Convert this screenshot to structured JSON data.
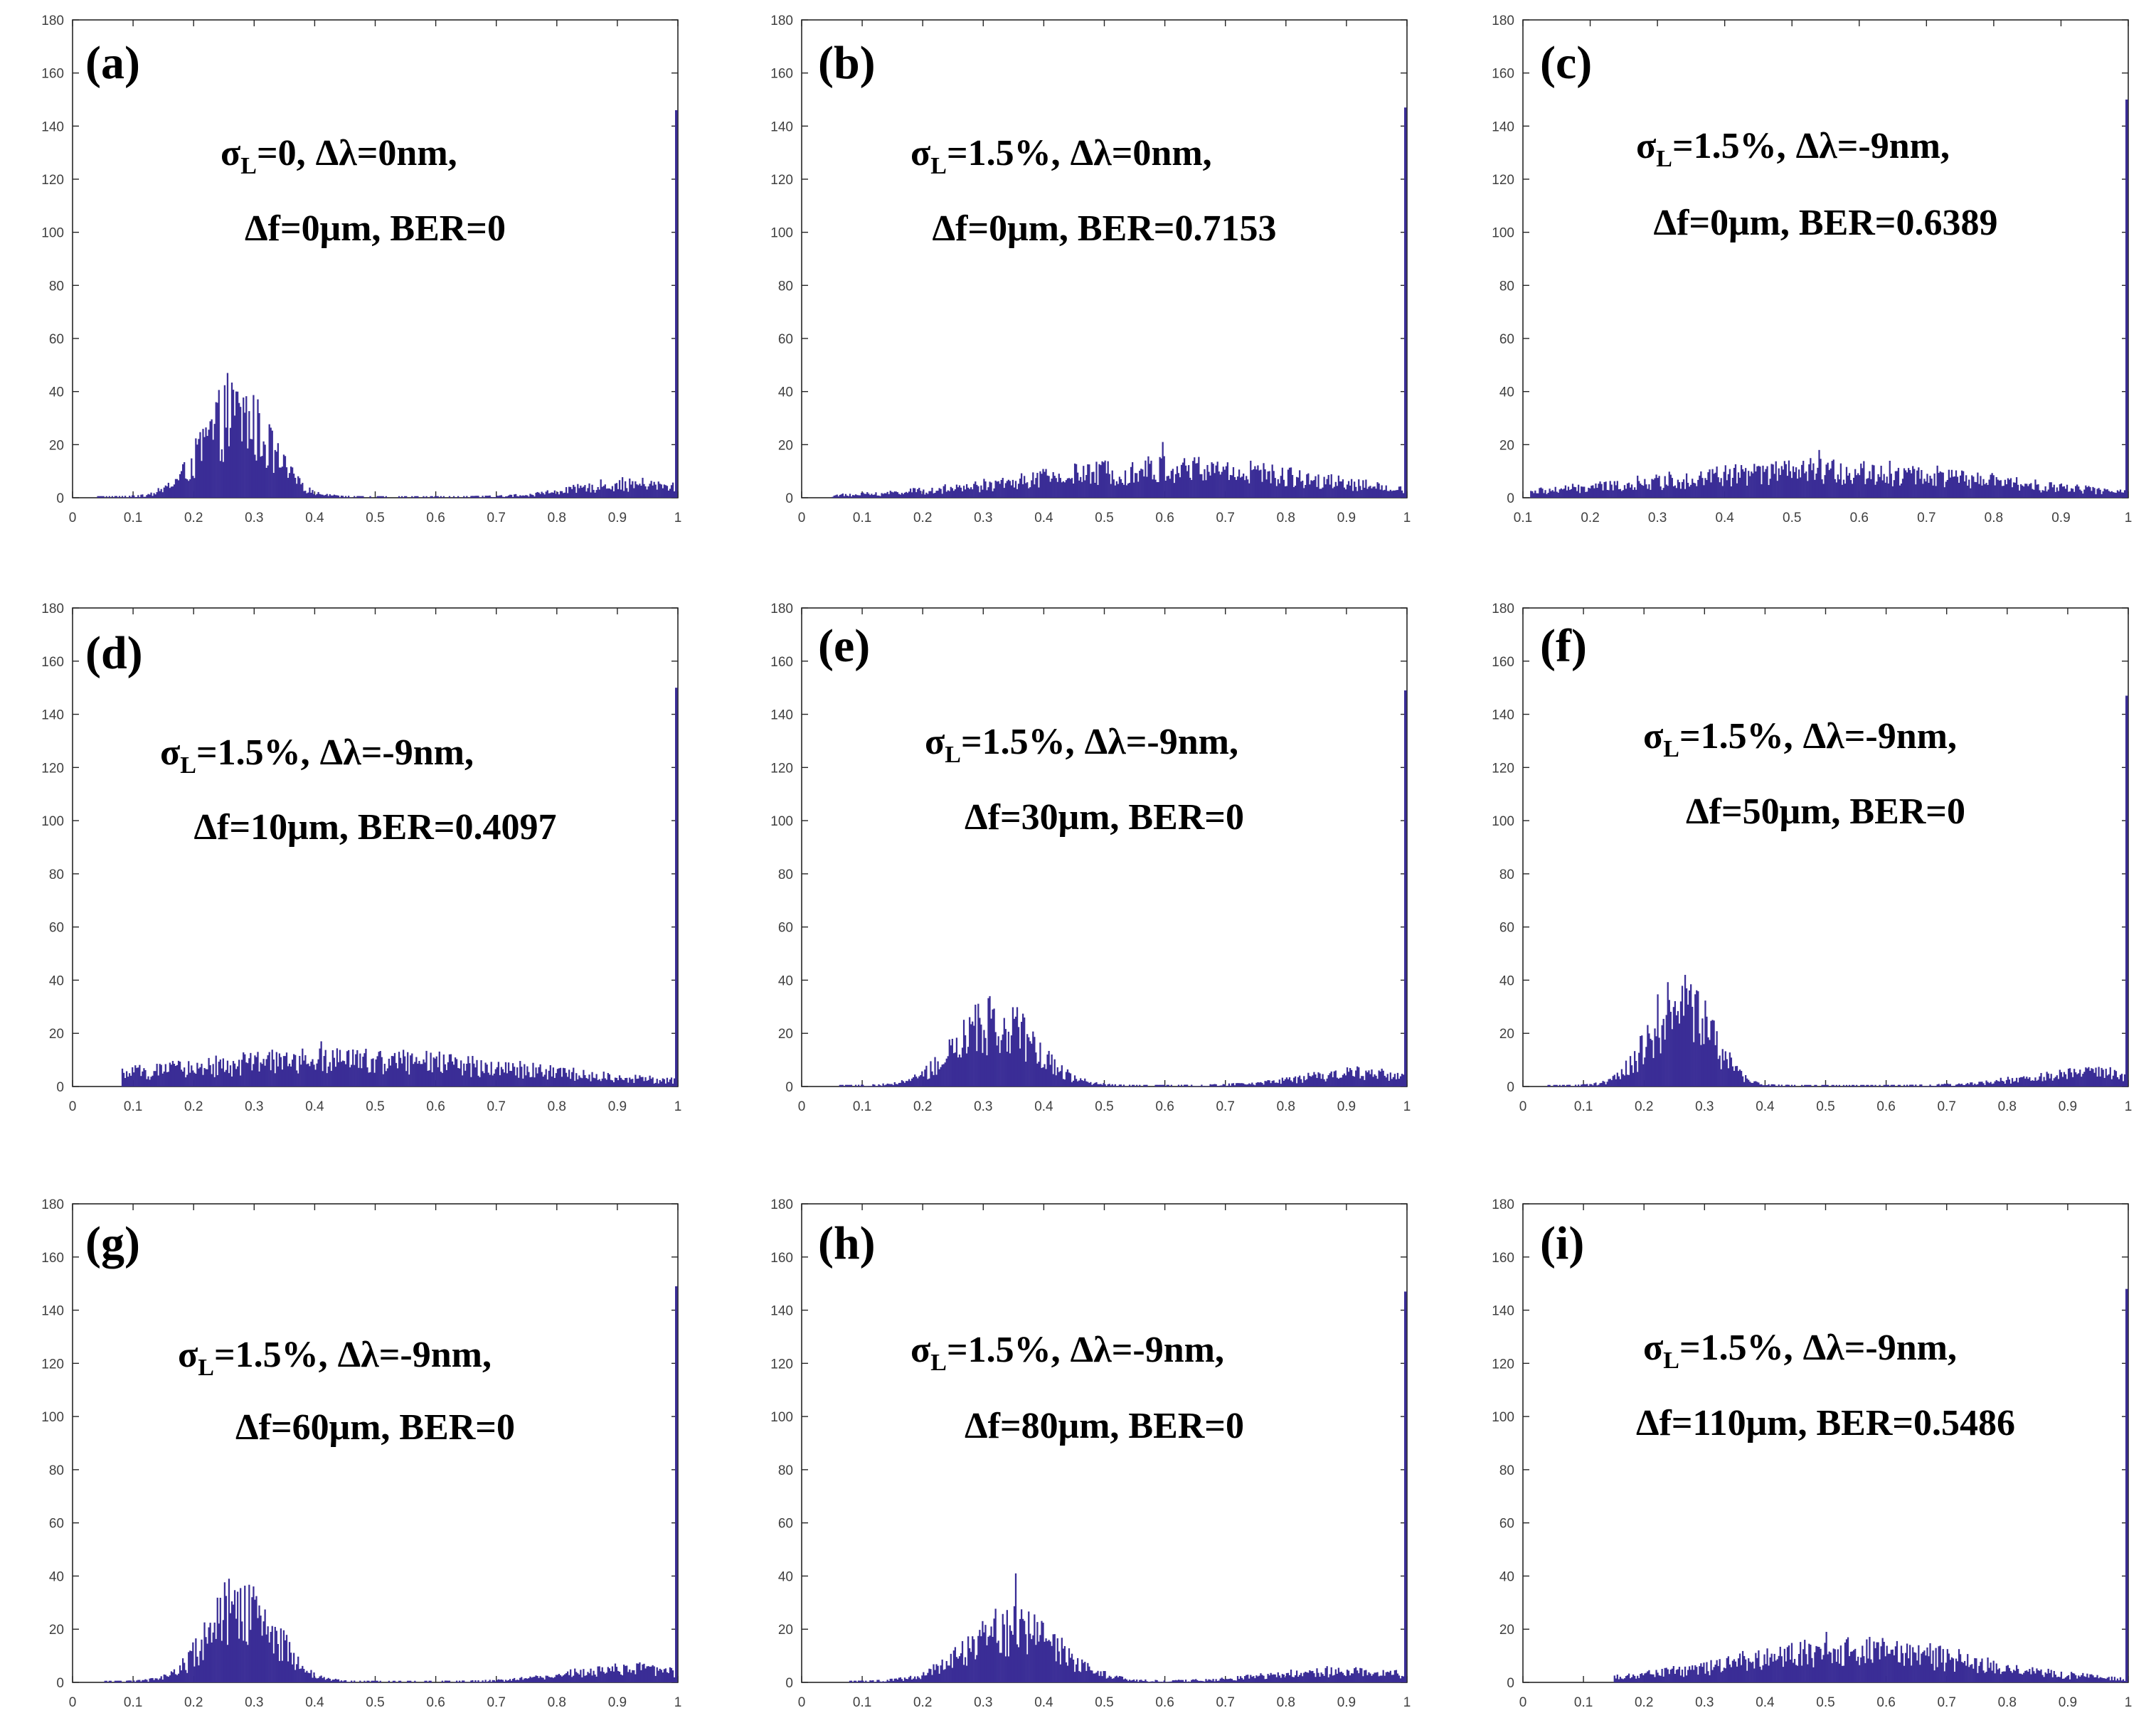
{
  "figure": {
    "colors": {
      "bar": "#3a2d96",
      "axis": "#262626",
      "text": "#000000",
      "background": "#ffffff"
    }
  },
  "chart_data": [
    {
      "type": "bar",
      "panel": "(a)",
      "sigma": "=0,",
      "line1_rest": "Δλ=0nm,",
      "line2": "Δf=0μm, BER=0",
      "xlim": [
        0,
        1
      ],
      "ylim": [
        0,
        180
      ],
      "xticks": [
        "0",
        "0.1",
        "0.2",
        "0.3",
        "0.4",
        "0.5",
        "0.6",
        "0.7",
        "0.8",
        "0.9",
        "1"
      ],
      "yticks": [
        "0",
        "20",
        "40",
        "60",
        "80",
        "100",
        "120",
        "140",
        "160",
        "180"
      ],
      "lobes": [
        {
          "center": 0.27,
          "width": 0.055,
          "height": 32
        },
        {
          "center": 0.92,
          "width": 0.09,
          "height": 5
        }
      ],
      "x_from": 0.04,
      "x_to": 0.995,
      "end_spike": 146,
      "peak_value": 47
    },
    {
      "type": "bar",
      "panel": "(b)",
      "sigma": "=1.5%,",
      "line1_rest": "Δλ=0nm,",
      "line2": "Δf=0μm, BER=0.7153",
      "xlim": [
        0,
        1
      ],
      "ylim": [
        0,
        180
      ],
      "xticks": [
        "0",
        "0.1",
        "0.2",
        "0.3",
        "0.4",
        "0.5",
        "0.6",
        "0.7",
        "0.8",
        "0.9",
        "1"
      ],
      "yticks": [
        "0",
        "20",
        "40",
        "60",
        "80",
        "100",
        "120",
        "140",
        "160",
        "180"
      ],
      "lobes": [
        {
          "center": 0.62,
          "width": 0.24,
          "height": 11
        }
      ],
      "x_from": 0.05,
      "x_to": 0.995,
      "end_spike": 147,
      "peak_value": 21
    },
    {
      "type": "bar",
      "panel": "(c)",
      "sigma": "=1.5%,",
      "line1_rest": "Δλ=-9nm,",
      "line2": "Δf=0μm, BER=0.6389",
      "xlim": [
        0.1,
        1
      ],
      "ylim": [
        0,
        180
      ],
      "xticks": [
        "0.1",
        "0.2",
        "0.3",
        "0.4",
        "0.5",
        "0.6",
        "0.7",
        "0.8",
        "0.9",
        "1"
      ],
      "yticks": [
        "0",
        "20",
        "40",
        "60",
        "80",
        "100",
        "120",
        "140",
        "160",
        "180"
      ],
      "lobes": [
        {
          "center": 0.55,
          "width": 0.25,
          "height": 10
        }
      ],
      "x_from": 0.11,
      "x_to": 0.995,
      "end_spike": 150,
      "peak_value": 18
    },
    {
      "type": "bar",
      "panel": "(d)",
      "sigma": "=1.5%,",
      "line1_rest": "Δλ=-9nm,",
      "line2": "Δf=10μm, BER=0.4097",
      "xlim": [
        0,
        1
      ],
      "ylim": [
        0,
        180
      ],
      "xticks": [
        "0",
        "0.1",
        "0.2",
        "0.3",
        "0.4",
        "0.5",
        "0.6",
        "0.7",
        "0.8",
        "0.9",
        "1"
      ],
      "yticks": [
        "0",
        "20",
        "40",
        "60",
        "80",
        "100",
        "120",
        "140",
        "160",
        "180"
      ],
      "lobes": [
        {
          "center": 0.45,
          "width": 0.3,
          "height": 10
        }
      ],
      "x_from": 0.08,
      "x_to": 0.995,
      "end_spike": 150,
      "peak_value": 17
    },
    {
      "type": "bar",
      "panel": "(e)",
      "sigma": "=1.5%,",
      "line1_rest": "Δλ=-9nm,",
      "line2": "Δf=30μm, BER=0",
      "xlim": [
        0,
        1
      ],
      "ylim": [
        0,
        180
      ],
      "xticks": [
        "0",
        "0.1",
        "0.2",
        "0.3",
        "0.4",
        "0.5",
        "0.6",
        "0.7",
        "0.8",
        "0.9",
        "1"
      ],
      "yticks": [
        "0",
        "20",
        "40",
        "60",
        "80",
        "100",
        "120",
        "140",
        "160",
        "180"
      ],
      "lobes": [
        {
          "center": 0.32,
          "width": 0.065,
          "height": 24
        },
        {
          "center": 0.93,
          "width": 0.1,
          "height": 5
        }
      ],
      "x_from": 0.06,
      "x_to": 0.995,
      "end_spike": 149,
      "peak_value": 34
    },
    {
      "type": "bar",
      "panel": "(f)",
      "sigma": "=1.5%,",
      "line1_rest": "Δλ=-9nm,",
      "line2": "Δf=50μm, BER=0",
      "xlim": [
        0,
        1
      ],
      "ylim": [
        0,
        180
      ],
      "xticks": [
        "0",
        "0.1",
        "0.2",
        "0.3",
        "0.4",
        "0.5",
        "0.6",
        "0.7",
        "0.8",
        "0.9",
        "1"
      ],
      "yticks": [
        "0",
        "20",
        "40",
        "60",
        "80",
        "100",
        "120",
        "140",
        "160",
        "180"
      ],
      "lobes": [
        {
          "center": 0.26,
          "width": 0.05,
          "height": 32
        },
        {
          "center": 0.93,
          "width": 0.1,
          "height": 5
        }
      ],
      "x_from": 0.04,
      "x_to": 0.995,
      "end_spike": 147,
      "peak_value": 42
    },
    {
      "type": "bar",
      "panel": "(g)",
      "sigma": "=1.5%,",
      "line1_rest": "Δλ=-9nm,",
      "line2": "Δf=60μm, BER=0",
      "xlim": [
        0,
        1
      ],
      "ylim": [
        0,
        180
      ],
      "xticks": [
        "0",
        "0.1",
        "0.2",
        "0.3",
        "0.4",
        "0.5",
        "0.6",
        "0.7",
        "0.8",
        "0.9",
        "1"
      ],
      "yticks": [
        "0",
        "20",
        "40",
        "60",
        "80",
        "100",
        "120",
        "140",
        "160",
        "180"
      ],
      "lobes": [
        {
          "center": 0.28,
          "width": 0.055,
          "height": 30
        },
        {
          "center": 0.92,
          "width": 0.1,
          "height": 5
        }
      ],
      "x_from": 0.05,
      "x_to": 0.995,
      "end_spike": 149,
      "peak_value": 39
    },
    {
      "type": "bar",
      "panel": "(h)",
      "sigma": "=1.5%,",
      "line1_rest": "Δλ=-9nm,",
      "line2": "Δf=80μm, BER=0",
      "xlim": [
        0,
        1
      ],
      "ylim": [
        0,
        180
      ],
      "xticks": [
        "0",
        "0.1",
        "0.2",
        "0.3",
        "0.4",
        "0.5",
        "0.6",
        "0.7",
        "0.8",
        "0.9",
        "1"
      ],
      "yticks": [
        "0",
        "20",
        "40",
        "60",
        "80",
        "100",
        "120",
        "140",
        "160",
        "180"
      ],
      "lobes": [
        {
          "center": 0.35,
          "width": 0.075,
          "height": 21
        },
        {
          "center": 0.9,
          "width": 0.12,
          "height": 4
        }
      ],
      "x_from": 0.07,
      "x_to": 0.995,
      "end_spike": 147,
      "peak_value": 41
    },
    {
      "type": "bar",
      "panel": "(i)",
      "sigma": "=1.5%,",
      "line1_rest": "Δλ=-9nm,",
      "line2": "Δf=110μm, BER=0.5486",
      "xlim": [
        0,
        1
      ],
      "ylim": [
        0,
        180
      ],
      "xticks": [
        "0",
        "0.1",
        "0.2",
        "0.3",
        "0.4",
        "0.5",
        "0.6",
        "0.7",
        "0.8",
        "0.9",
        "1"
      ],
      "yticks": [
        "0",
        "20",
        "40",
        "60",
        "80",
        "100",
        "120",
        "140",
        "160",
        "180"
      ],
      "lobes": [
        {
          "center": 0.55,
          "width": 0.2,
          "height": 12
        }
      ],
      "x_from": 0.15,
      "x_to": 0.995,
      "end_spike": 148,
      "peak_value": 19
    }
  ]
}
